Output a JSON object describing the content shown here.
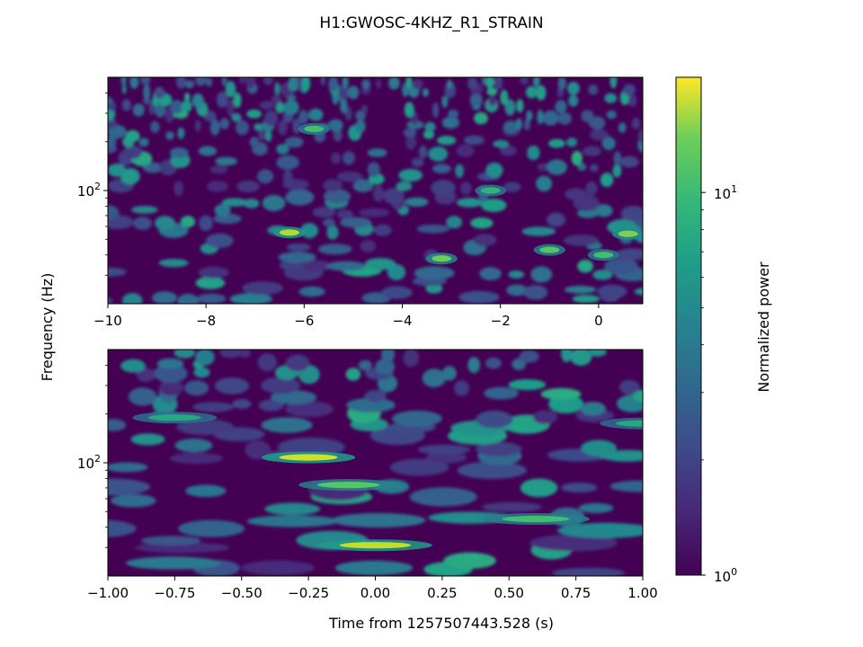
{
  "chart_data": {
    "type": "heatmap",
    "title": "H1:GWOSC-4KHZ_R1_STRAIN",
    "ylabel": "Frequency (Hz)",
    "xlabel": "Time from 1257507443.528 (s)",
    "colormap": "viridis",
    "colorbar": {
      "label": "Normalized power",
      "scale": "log",
      "range": [
        1,
        20
      ],
      "tick_values": [
        1,
        10
      ],
      "tick_labels": [
        {
          "base": "10",
          "exp": "0"
        },
        {
          "base": "10",
          "exp": "1"
        }
      ]
    },
    "panels": [
      {
        "name": "top",
        "xlim": [
          -10,
          0.9
        ],
        "ylim": [
          20,
          500
        ],
        "yscale": "log",
        "x_ticks": [
          -10,
          -8,
          -6,
          -4,
          -2,
          0
        ],
        "x_tick_labels": [
          "−10",
          "−8",
          "−6",
          "−4",
          "−2",
          "0"
        ],
        "y_tick_label": {
          "value": 100,
          "base": "10",
          "exp": "2"
        },
        "hotspots": [
          {
            "t": -6.3,
            "f": 55,
            "power": 14
          },
          {
            "t": -3.2,
            "f": 38,
            "power": 10
          },
          {
            "t": 0.6,
            "f": 54,
            "power": 11
          },
          {
            "t": -1.0,
            "f": 43,
            "power": 9
          },
          {
            "t": -5.8,
            "f": 240,
            "power": 8
          },
          {
            "t": -2.2,
            "f": 100,
            "power": 7
          },
          {
            "t": 0.1,
            "f": 40,
            "power": 8
          }
        ]
      },
      {
        "name": "bottom",
        "xlim": [
          -1.0,
          1.0
        ],
        "ylim": [
          20,
          500
        ],
        "yscale": "log",
        "x_ticks": [
          -1.0,
          -0.75,
          -0.5,
          -0.25,
          0.0,
          0.25,
          0.5,
          0.75,
          1.0
        ],
        "x_tick_labels": [
          "−1.00",
          "−0.75",
          "−0.50",
          "−0.25",
          "0.00",
          "0.25",
          "0.50",
          "0.75",
          "1.00"
        ],
        "y_tick_label": {
          "value": 100,
          "base": "10",
          "exp": "2"
        },
        "hotspots": [
          {
            "t": -0.25,
            "f": 108,
            "power": 16
          },
          {
            "t": 0.0,
            "f": 31,
            "power": 15
          },
          {
            "t": -0.1,
            "f": 73,
            "power": 9
          },
          {
            "t": 0.6,
            "f": 45,
            "power": 8
          },
          {
            "t": -0.75,
            "f": 190,
            "power": 6
          },
          {
            "t": 1.0,
            "f": 175,
            "power": 6
          }
        ]
      }
    ]
  }
}
